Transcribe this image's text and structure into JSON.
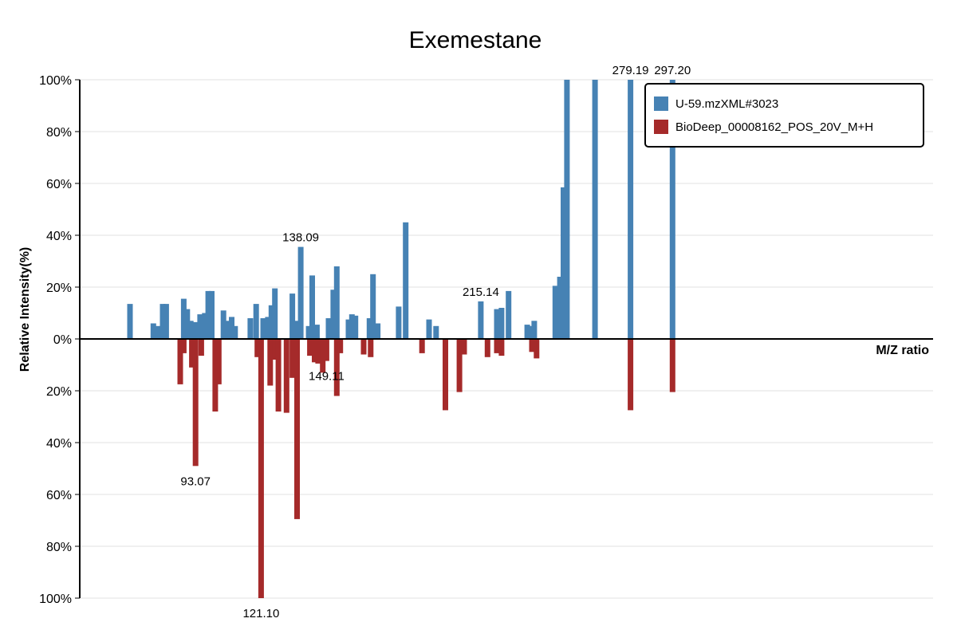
{
  "chart_data": {
    "type": "bar",
    "title": "Exemestane",
    "ylabel": "Relative Intensity(%)",
    "xlabel": "M/Z ratio",
    "ylim": [
      -100,
      100
    ],
    "grid": true,
    "legend_position": "top-right",
    "y_ticks": [
      "100%",
      "80%",
      "60%",
      "40%",
      "20%",
      "0%",
      "20%",
      "40%",
      "60%",
      "80%",
      "100%"
    ],
    "series": [
      {
        "name": "U-59.mzXML#3023",
        "color": "#4682B4",
        "direction": "up",
        "mz": [
          65.0,
          75.0,
          77.0,
          79.0,
          80.5,
          88.0,
          89.5,
          91.0,
          93.0,
          95.0,
          97.0,
          98.5,
          100.0,
          105.0,
          107.0,
          108.5,
          110.0,
          116.5,
          119.0,
          122.0,
          124.0,
          125.5,
          127.0,
          134.5,
          136.0,
          138.09,
          141.5,
          143.0,
          145.0,
          150.0,
          152.0,
          153.5,
          158.5,
          160.0,
          161.5,
          167.5,
          169.0,
          171.0,
          180.0,
          183.0,
          193.0,
          196.0,
          215.14,
          222.0,
          224.0,
          227.0,
          235.0,
          236.5,
          238.0,
          247.0,
          249.0,
          250.5,
          252.0,
          264.0,
          279.19,
          297.2
        ],
        "values": [
          13.5,
          6.0,
          5.0,
          13.5,
          13.5,
          15.5,
          11.5,
          7.0,
          6.5,
          9.5,
          10.0,
          18.5,
          18.5,
          11.0,
          7.0,
          8.5,
          5.0,
          8.0,
          13.5,
          8.0,
          8.5,
          13.0,
          19.5,
          17.5,
          7.0,
          35.5,
          5.0,
          24.5,
          5.5,
          8.0,
          19.0,
          28.0,
          7.5,
          9.5,
          9.0,
          8.0,
          25.0,
          6.0,
          12.5,
          45.0,
          7.5,
          5.0,
          14.5,
          11.5,
          12.0,
          18.5,
          5.5,
          5.0,
          7.0,
          20.5,
          24.0,
          58.5,
          100.0,
          100.0,
          100.0,
          100.0
        ],
        "label_points": [
          {
            "mz": 138.09,
            "label": "138.09"
          },
          {
            "mz": 215.14,
            "label": "215.14"
          },
          {
            "mz": 279.19,
            "label": "279.19"
          },
          {
            "mz": 297.2,
            "label": "297.20"
          }
        ]
      },
      {
        "name": "BioDeep_00008162_POS_20V_M+H",
        "color": "#A52A2A",
        "direction": "down",
        "mz": [
          86.5,
          88.0,
          91.5,
          93.07,
          95.5,
          101.5,
          103.0,
          119.5,
          121.1,
          125.0,
          127.0,
          128.5,
          132.0,
          134.5,
          136.5,
          142.0,
          144.0,
          145.5,
          147.5,
          149.11,
          153.5,
          155.0,
          165.0,
          168.0,
          190.0,
          200.0,
          206.0,
          208.0,
          218.0,
          222.0,
          224.0,
          237.0,
          239.0,
          279.19,
          297.2
        ],
        "values": [
          17.5,
          5.5,
          11.0,
          49.0,
          6.5,
          28.0,
          17.5,
          7.0,
          100.0,
          18.0,
          8.0,
          28.0,
          28.5,
          15.0,
          69.5,
          6.5,
          9.0,
          9.5,
          13.0,
          8.5,
          22.0,
          5.5,
          6.0,
          7.0,
          5.5,
          27.5,
          20.5,
          6.0,
          7.0,
          5.5,
          6.5,
          5.0,
          7.5,
          27.5,
          20.5
        ],
        "label_points": [
          {
            "mz": 93.07,
            "label": "93.07"
          },
          {
            "mz": 121.1,
            "label": "121.10"
          },
          {
            "mz": 149.11,
            "label": "149.11"
          }
        ]
      }
    ]
  }
}
